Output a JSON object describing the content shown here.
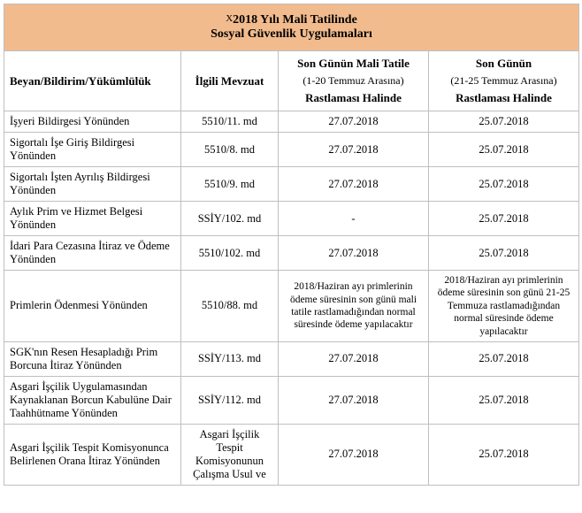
{
  "title": {
    "line1": "2018 Yılı Mali Tatilinde",
    "line2": "Sosyal Güvenlik Uygulamaları",
    "prefix": "X"
  },
  "headers": {
    "c1": "Beyan/Bildirim/Yükümlülük",
    "c2": "İlgili Mevzuat",
    "c3_main": "Son Günün Mali Tatile",
    "c3_sub": "(1-20 Temmuz Arasına)",
    "c3_sub2": "Rastlaması Halinde",
    "c4_main": "Son Günün",
    "c4_sub": "(21-25 Temmuz Arasına)",
    "c4_sub2": "Rastlaması Halinde"
  },
  "rows": [
    {
      "c1": "İşyeri Bildirgesi Yönünden",
      "c2": "5510/11. md",
      "c3": "27.07.2018",
      "c4": "25.07.2018"
    },
    {
      "c1": "Sigortalı İşe Giriş Bildirgesi Yönünden",
      "c2": "5510/8. md",
      "c3": "27.07.2018",
      "c4": "25.07.2018"
    },
    {
      "c1": "Sigortalı İşten Ayrılış Bildirgesi Yönünden",
      "c2": "5510/9. md",
      "c3": "27.07.2018",
      "c4": "25.07.2018"
    },
    {
      "c1": "Aylık Prim ve Hizmet Belgesi Yönünden",
      "c2": "SSİY/102. md",
      "c3": "-",
      "c4": "25.07.2018"
    },
    {
      "c1": "İdari Para Cezasına İtiraz ve Ödeme Yönünden",
      "c2": "5510/102. md",
      "c3": "27.07.2018",
      "c4": "25.07.2018"
    },
    {
      "c1": "Primlerin Ödenmesi Yönünden",
      "c2": "5510/88. md",
      "c3": "2018/Haziran ayı primlerinin ödeme süresinin son günü mali tatile rastlamadığından normal süresinde ödeme yapılacaktır",
      "c4": "2018/Haziran ayı primlerinin ödeme süresinin son günü 21-25 Temmuza rastlamadığından normal süresinde ödeme yapılacaktır",
      "long": true
    },
    {
      "c1": "SGK'nın Resen Hesapladığı Prim Borcuna İtiraz Yönünden",
      "c2": "SSİY/113. md",
      "c3": "27.07.2018",
      "c4": "25.07.2018"
    },
    {
      "c1": "Asgari İşçilik Uygulamasından Kaynaklanan Borcun Kabulüne Dair Taahhütname Yönünden",
      "c2": "SSİY/112. md",
      "c3": "27.07.2018",
      "c4": "25.07.2018"
    },
    {
      "c1": "Asgari İşçilik Tespit Komisyonunca Belirlenen Orana İtiraz Yönünden",
      "c2": "Asgari İşçilik Tespit Komisyonunun Çalışma Usul ve",
      "c3": "27.07.2018",
      "c4": "25.07.2018"
    }
  ],
  "col_widths": {
    "c1": 200,
    "c2": 110,
    "c3": 170,
    "c4": 170
  },
  "colors": {
    "title_bg": "#f2bb8e",
    "border": "#bfbfbf",
    "text": "#000000",
    "bg": "#ffffff"
  },
  "font": {
    "family": "Georgia/serif",
    "title_size_pt": 14,
    "body_size_pt": 12.5,
    "header_size_pt": 13
  }
}
